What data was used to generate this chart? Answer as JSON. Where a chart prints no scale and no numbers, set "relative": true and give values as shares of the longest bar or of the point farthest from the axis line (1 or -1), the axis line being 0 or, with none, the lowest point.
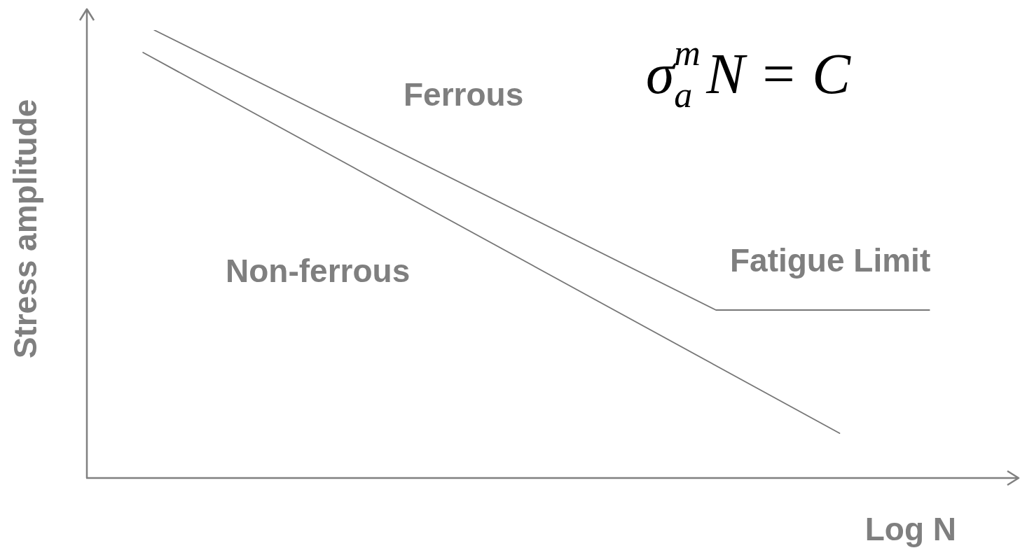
{
  "chart_data": {
    "type": "line",
    "relative": true,
    "xlabel": "Log N",
    "ylabel": "Stress amplitude",
    "marker": "none",
    "line_style": "solid",
    "legend": false,
    "grid": false,
    "categories": [
      null,
      null,
      null,
      null,
      null,
      null,
      null,
      null,
      null,
      null,
      null,
      null,
      null,
      null,
      null,
      null,
      null,
      null,
      null,
      null,
      null,
      null,
      null,
      null,
      null,
      null,
      null,
      null,
      null,
      null,
      null,
      null,
      null,
      null,
      null,
      null,
      null,
      null,
      null,
      null,
      null,
      null,
      null,
      null,
      null,
      null,
      null,
      null,
      null,
      null,
      null,
      null,
      null,
      null,
      null,
      null,
      null,
      null,
      null,
      null,
      null,
      null,
      null,
      null,
      null,
      null,
      null,
      null,
      null,
      null,
      null,
      null,
      null,
      null,
      null,
      null,
      null,
      null,
      null,
      null,
      null,
      null,
      null,
      null
    ],
    "series": [
      {
        "name": "Ferrous",
        "color": "#767676",
        "values": [
          null,
          null,
          null,
          null,
          null,
          null,
          1,
          null,
          null,
          null,
          null,
          null,
          null,
          null,
          null,
          null,
          null,
          null,
          null,
          null,
          null,
          null,
          null,
          null,
          null,
          null,
          null,
          null,
          null,
          null,
          null,
          null,
          null,
          null,
          null,
          null,
          null,
          null,
          null,
          null,
          null,
          null,
          null,
          null,
          null,
          null,
          null,
          null,
          null,
          null,
          null,
          null,
          null,
          null,
          null,
          null,
          0.375,
          null,
          null,
          null,
          null,
          null,
          null,
          null,
          null,
          null,
          null,
          null,
          null,
          null,
          null,
          null,
          null,
          null,
          null,
          0.375,
          null,
          null,
          null,
          null,
          null,
          null,
          null,
          null
        ]
      },
      {
        "name": "Non-ferrous",
        "color": "#767676",
        "values": [
          null,
          null,
          null,
          null,
          null,
          0.95,
          null,
          null,
          null,
          null,
          null,
          null,
          null,
          null,
          null,
          null,
          null,
          null,
          null,
          null,
          null,
          null,
          null,
          null,
          null,
          null,
          null,
          null,
          null,
          null,
          null,
          null,
          null,
          null,
          null,
          null,
          null,
          null,
          null,
          null,
          null,
          null,
          null,
          null,
          null,
          null,
          null,
          null,
          null,
          null,
          null,
          null,
          null,
          null,
          null,
          null,
          null,
          null,
          null,
          null,
          null,
          null,
          null,
          null,
          null,
          null,
          null,
          0.1,
          null,
          null,
          null,
          null,
          null,
          null,
          null,
          null,
          null,
          null,
          null,
          null,
          null,
          null,
          null,
          null
        ]
      }
    ],
    "annotations": [
      "σ$_{a}$$^{m}$N = C",
      {
        "text": "Fatigue Limit",
        "y": 0.375
      }
    ]
  }
}
